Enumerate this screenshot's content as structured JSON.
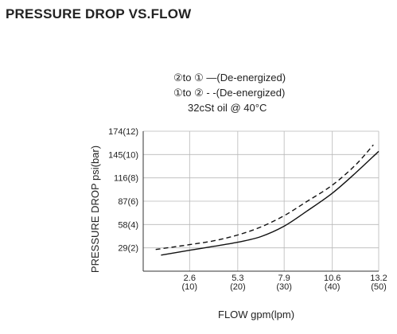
{
  "page_title": "PRESSURE DROP VS.FLOW",
  "legend": {
    "line1": "②to ① —(De-energized)",
    "line2": "①to ② - -(De-energized)",
    "condition": "32cSt oil @ 40°C"
  },
  "chart_data": {
    "type": "line",
    "title": "",
    "xlabel": "FLOW  gpm(lpm)",
    "ylabel": "PRESSURE DROP  psi(bar)",
    "xlim": [
      0,
      13.2
    ],
    "ylim": [
      0,
      174
    ],
    "grid": true,
    "x_ticks": [
      {
        "value": 2.6,
        "top": "2.6",
        "bottom": "(10)"
      },
      {
        "value": 5.3,
        "top": "5.3",
        "bottom": "(20)"
      },
      {
        "value": 7.9,
        "top": "7.9",
        "bottom": "(30)"
      },
      {
        "value": 10.6,
        "top": "10.6",
        "bottom": "(40)"
      },
      {
        "value": 13.2,
        "top": "13.2",
        "bottom": "(50)"
      }
    ],
    "y_ticks": [
      {
        "value": 29,
        "label": "29(2)"
      },
      {
        "value": 58,
        "label": "58(4)"
      },
      {
        "value": 87,
        "label": "87(6)"
      },
      {
        "value": 116,
        "label": "116(8)"
      },
      {
        "value": 145,
        "label": "145(10)"
      },
      {
        "value": 174,
        "label": "174(12)"
      }
    ],
    "series": [
      {
        "style": "solid",
        "x": [
          1.0,
          2.6,
          4.0,
          5.3,
          6.6,
          7.9,
          9.2,
          10.6,
          11.9,
          13.2
        ],
        "y": [
          20,
          26,
          31,
          36,
          43,
          56,
          75,
          97,
          122,
          149
        ]
      },
      {
        "style": "dashed",
        "x": [
          0.7,
          2.6,
          4.0,
          5.3,
          6.6,
          7.9,
          9.2,
          10.6,
          11.9,
          12.9
        ],
        "y": [
          27,
          33,
          38,
          45,
          55,
          69,
          87,
          107,
          132,
          157
        ]
      }
    ]
  }
}
